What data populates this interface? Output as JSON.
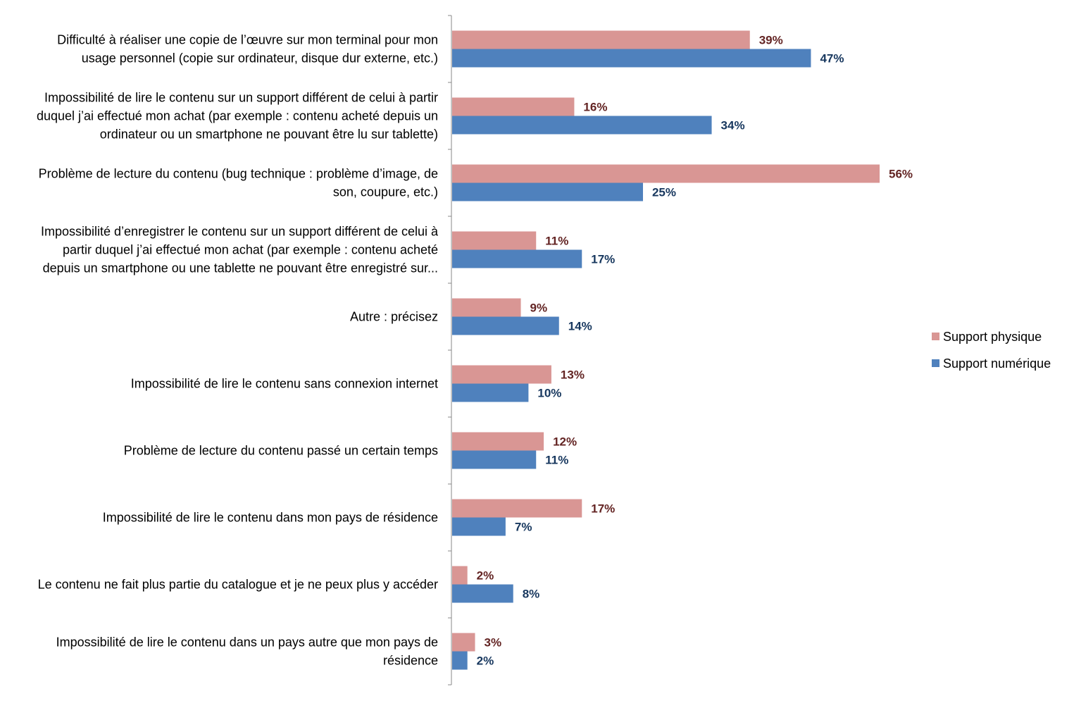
{
  "chart_data": {
    "type": "bar",
    "orientation": "horizontal",
    "categories": [
      [
        "Difficulté à réaliser une copie de l’œuvre sur mon terminal pour mon",
        "usage personnel (copie sur ordinateur, disque dur externe, etc.)"
      ],
      [
        "Impossibilité de lire le contenu sur un support différent de celui à partir",
        "duquel j’ai effectué  mon achat (par exemple : contenu acheté depuis un",
        "ordinateur ou un smartphone ne pouvant être lu sur tablette)"
      ],
      [
        "Problème de lecture du contenu (bug technique : problème d’image, de",
        "son, coupure, etc.)"
      ],
      [
        "Impossibilité d’enregistrer  le contenu sur un support différent de celui à",
        "partir duquel j’ai effectué  mon achat (par exemple : contenu acheté",
        "depuis un smartphone ou une tablette ne pouvant être enregistré sur..."
      ],
      [
        "Autre : précisez"
      ],
      [
        "Impossibilité de lire le contenu sans connexion internet"
      ],
      [
        "Problème de lecture du contenu passé un certain temps"
      ],
      [
        "Impossibilité de lire le contenu dans mon pays de résidence"
      ],
      [
        "Le contenu ne fait plus partie du catalogue et je ne peux plus y accéder"
      ],
      [
        "Impossibilité de lire le contenu dans un pays autre que mon pays de",
        "résidence"
      ]
    ],
    "series": [
      {
        "name": "Support physique",
        "color": "#D99694",
        "label_color": "#632423",
        "values": [
          39,
          16,
          56,
          11,
          9,
          13,
          12,
          17,
          2,
          3
        ],
        "labels": [
          "39%",
          "16%",
          "56%",
          "11%",
          "9%",
          "13%",
          "12%",
          "17%",
          "2%",
          "3%"
        ]
      },
      {
        "name": "Support numérique",
        "color": "#4F81BD",
        "label_color": "#17375E",
        "values": [
          47,
          34,
          25,
          17,
          14,
          10,
          11,
          7,
          8,
          2
        ],
        "labels": [
          "47%",
          "34%",
          "25%",
          "17%",
          "14%",
          "10%",
          "11%",
          "7%",
          "8%",
          "2%"
        ]
      }
    ],
    "xlim": [
      0,
      60
    ],
    "grid": false,
    "legend_position": "right"
  }
}
